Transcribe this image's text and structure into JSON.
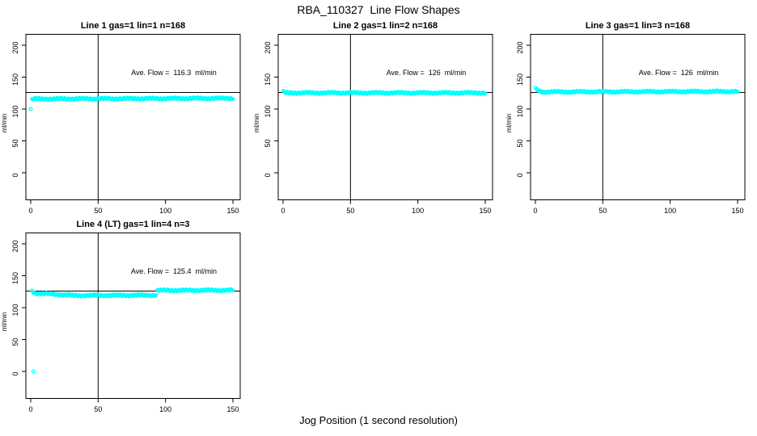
{
  "title": "RBA_110327  Line Flow Shapes",
  "xlabel": "Jog Position (1 second resolution)",
  "colors": {
    "marker": "#00ffff",
    "axis": "#000000",
    "background": "#ffffff",
    "text": "#000000"
  },
  "chart_data": {
    "type": "scatter",
    "title": "RBA_110327  Line Flow Shapes",
    "xlabel": "Jog Position (1 second resolution)",
    "ylabel": "ml/min",
    "marker": "open-circle",
    "marker_color": "#00ffff",
    "grid": false,
    "layout": {
      "rows": 2,
      "cols": 3,
      "used_cells": 4
    },
    "axes": {
      "xticks": [
        0,
        50,
        100,
        150
      ],
      "yticks": [
        0,
        50,
        100,
        150,
        200
      ],
      "xlim": [
        -4,
        155
      ],
      "ylim": [
        -42,
        218
      ],
      "ylabel": "ml/min",
      "vline_x": 50,
      "hline_y": 126
    },
    "panels": [
      {
        "title": "Line 1 gas=1 lin=1 n=168",
        "line": 1,
        "gas": 1,
        "lin": 1,
        "n": 168,
        "annotation": "Ave. Flow =  116.3  ml/min",
        "ave_flow_ml_min": 116.3,
        "segments": [
          {
            "x0": 0,
            "x1": 0,
            "y0": 100,
            "y1": 100
          },
          {
            "x0": 1,
            "x1": 3,
            "y0": 114.5,
            "y1": 116
          },
          {
            "x0": 3,
            "x1": 150,
            "y0": 115.8,
            "y1": 116.8
          }
        ]
      },
      {
        "title": "Line 2 gas=1 lin=2 n=168",
        "line": 2,
        "gas": 1,
        "lin": 2,
        "n": 168,
        "annotation": "Ave. Flow =  126  ml/min",
        "ave_flow_ml_min": 126,
        "segments": [
          {
            "x0": 0,
            "x1": 1,
            "y0": 128,
            "y1": 126
          },
          {
            "x0": 1,
            "x1": 150,
            "y0": 125.3,
            "y1": 125.3
          }
        ]
      },
      {
        "title": "Line 3 gas=1 lin=3 n=168",
        "line": 3,
        "gas": 1,
        "lin": 3,
        "n": 168,
        "annotation": "Ave. Flow =  126  ml/min",
        "ave_flow_ml_min": 126,
        "segments": [
          {
            "x0": 0,
            "x1": 1,
            "y0": 133,
            "y1": 130
          },
          {
            "x0": 1,
            "x1": 5,
            "y0": 130,
            "y1": 127
          },
          {
            "x0": 5,
            "x1": 150,
            "y0": 126.8,
            "y1": 127.5
          }
        ]
      },
      {
        "title": "Line 4 (LT) gas=1 lin=4 n=3",
        "line": 4,
        "lt": true,
        "gas": 1,
        "lin": 4,
        "n": 3,
        "annotation": "Ave. Flow =  125.4  ml/min",
        "ave_flow_ml_min": 125.4,
        "segments": [
          {
            "x0": 2,
            "x1": 2,
            "y0": 0,
            "y1": 0
          },
          {
            "x0": 1,
            "x1": 3,
            "y0": 126,
            "y1": 123
          },
          {
            "x0": 3,
            "x1": 30,
            "y0": 122.5,
            "y1": 119.5
          },
          {
            "x0": 30,
            "x1": 93,
            "y0": 119,
            "y1": 119.5
          },
          {
            "x0": 94,
            "x1": 150,
            "y0": 127,
            "y1": 127.3
          }
        ]
      }
    ]
  }
}
